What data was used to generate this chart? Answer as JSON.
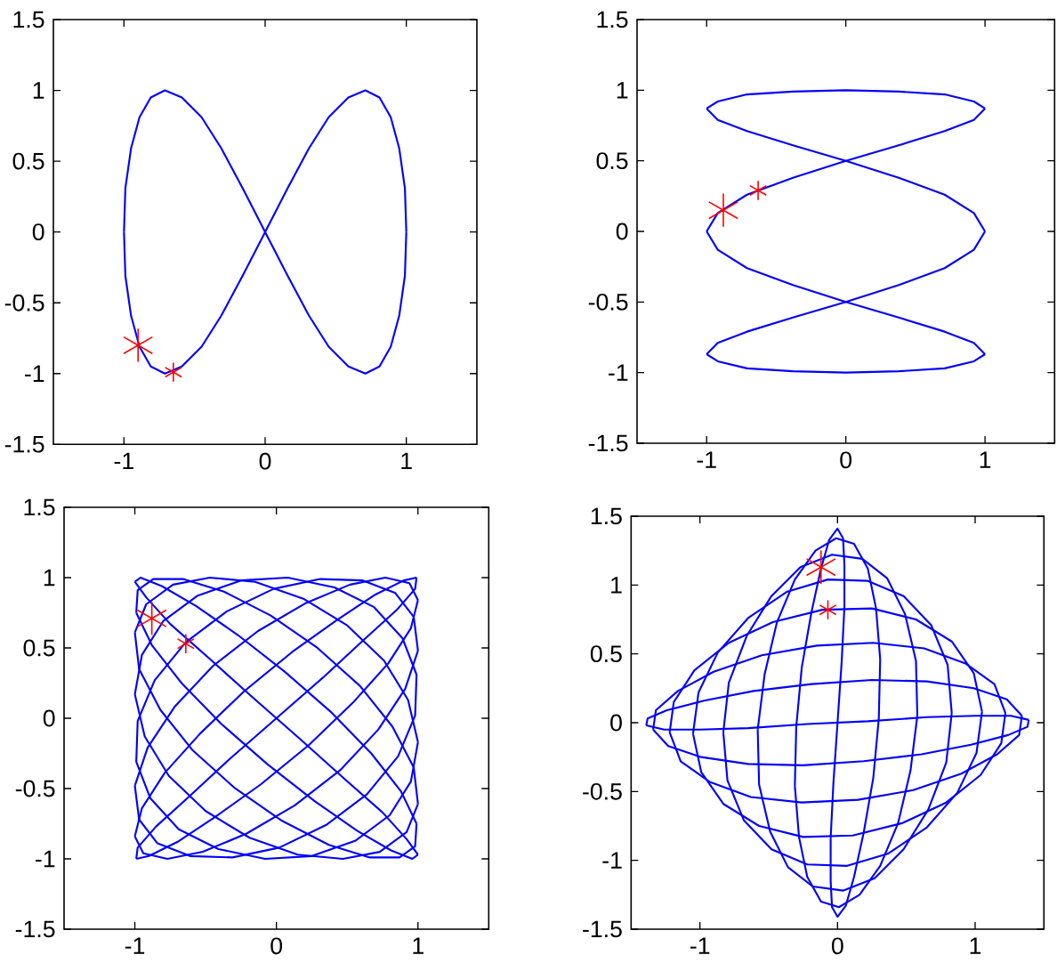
{
  "chart_data": [
    {
      "type": "line",
      "xlim": [
        -1.5,
        1.5
      ],
      "ylim": [
        -1.5,
        1.5
      ],
      "xticks": [
        -1,
        0,
        1
      ],
      "yticks": [
        -1.5,
        -1,
        -0.5,
        0,
        0.5,
        1,
        1.5
      ],
      "series": [
        {
          "type": "line",
          "color": "#0000ff",
          "x": [
            -1,
            -0.99,
            -0.95,
            -0.89,
            -0.81,
            -0.71,
            -0.59,
            -0.45,
            -0.31,
            -0.16,
            0,
            0.16,
            0.31,
            0.45,
            0.59,
            0.71,
            0.81,
            0.89,
            0.95,
            0.99,
            1,
            0.99,
            0.95,
            0.89,
            0.81,
            0.71,
            0.59,
            0.45,
            0.31,
            0.16,
            0,
            -0.16,
            -0.31,
            -0.45,
            -0.59,
            -0.71,
            -0.81,
            -0.89,
            -0.95,
            -0.99,
            -1
          ],
          "values": [
            0,
            -0.31,
            -0.59,
            -0.81,
            -0.95,
            -1,
            -0.95,
            -0.81,
            -0.59,
            -0.31,
            0,
            0.31,
            0.59,
            0.81,
            0.95,
            1,
            0.95,
            0.81,
            0.59,
            0.31,
            0,
            -0.31,
            -0.59,
            -0.81,
            -0.95,
            -1,
            -0.95,
            -0.81,
            -0.59,
            -0.31,
            0,
            0.31,
            0.59,
            0.81,
            0.95,
            1,
            0.95,
            0.81,
            0.59,
            0.31,
            0
          ]
        },
        {
          "type": "scatter",
          "color": "#ff0000",
          "marker": "cross",
          "x": [
            -0.9
          ],
          "values": [
            -0.8
          ]
        },
        {
          "type": "scatter",
          "color": "#ff0000",
          "marker": "cross",
          "x": [
            -0.65
          ],
          "values": [
            -0.99
          ]
        }
      ]
    },
    {
      "type": "line",
      "xlim": [
        -1.5,
        1.5
      ],
      "ylim": [
        -1.5,
        1.5
      ],
      "xticks": [
        -1,
        0,
        1
      ],
      "yticks": [
        -1.5,
        -1,
        -0.5,
        0,
        0.5,
        1,
        1.5
      ],
      "series": [
        {
          "type": "line",
          "color": "#0000ff",
          "x": [
            1,
            0.92,
            0.71,
            0.38,
            0,
            -0.38,
            -0.71,
            -0.92,
            -1,
            -0.92,
            -0.71,
            -0.38,
            0,
            0.38,
            0.71,
            0.92,
            1,
            0.92,
            0.71,
            0.38,
            0,
            -0.38,
            -0.71,
            -0.92,
            -1,
            -0.92,
            -0.71,
            -0.38,
            0,
            0.38,
            0.71,
            0.92,
            1,
            0.92,
            0.71,
            0.38,
            0,
            -0.38,
            -0.71,
            -0.92,
            -1,
            -0.92,
            -0.71,
            -0.38,
            0,
            0.38,
            0.71,
            0.92,
            1
          ],
          "values": [
            0,
            0.13,
            0.26,
            0.38,
            0.5,
            0.61,
            0.71,
            0.79,
            0.87,
            0.92,
            0.97,
            0.99,
            1,
            0.99,
            0.97,
            0.92,
            0.87,
            0.79,
            0.71,
            0.61,
            0.5,
            0.38,
            0.26,
            0.13,
            0,
            -0.13,
            -0.26,
            -0.38,
            -0.5,
            -0.61,
            -0.71,
            -0.79,
            -0.87,
            -0.92,
            -0.97,
            -0.99,
            -1,
            -0.99,
            -0.97,
            -0.92,
            -0.87,
            -0.79,
            -0.71,
            -0.61,
            -0.5,
            -0.38,
            -0.26,
            -0.13,
            0
          ]
        },
        {
          "type": "scatter",
          "color": "#ff0000",
          "marker": "cross",
          "x": [
            -0.88
          ],
          "values": [
            0.15
          ]
        },
        {
          "type": "scatter",
          "color": "#ff0000",
          "marker": "cross",
          "x": [
            -0.63
          ],
          "values": [
            0.29
          ]
        }
      ]
    },
    {
      "type": "line",
      "xlim": [
        -1.5,
        1.5
      ],
      "ylim": [
        -1.5,
        1.5
      ],
      "xticks": [
        -1,
        0,
        1
      ],
      "yticks": [
        -1.5,
        -1,
        -0.5,
        0,
        0.5,
        1,
        1.5
      ],
      "series": [
        {
          "type": "line",
          "color": "#0000ff",
          "x": [
            0,
            0.33,
            0.62,
            0.85,
            0.98,
            0.99,
            0.9,
            0.7,
            0.43,
            0.11,
            -0.23,
            -0.54,
            -0.79,
            -0.95,
            -1,
            -0.94,
            -0.77,
            -0.52,
            -0.21,
            0.13,
            0.45,
            0.72,
            0.91,
            1,
            0.97,
            0.84,
            0.61,
            0.31,
            -0.02,
            -0.35,
            -0.64,
            -0.86,
            -0.98,
            -0.99,
            -0.89,
            -0.69,
            -0.41,
            -0.08,
            0.25,
            0.56,
            0.8,
            0.95,
            1,
            0.93,
            0.76,
            0.5,
            0.19,
            -0.15,
            -0.47,
            -0.73,
            -0.92,
            -1,
            -0.97,
            -0.82,
            -0.59,
            -0.29,
            0.04,
            0.37,
            0.66,
            0.87,
            0.98,
            0.99,
            0.88,
            0.67,
            0.39,
            0.06,
            -0.27,
            -0.57,
            -0.81,
            -0.96,
            -1,
            -0.92,
            -0.75,
            -0.48,
            -0.17,
            0.17,
            0.48,
            0.75,
            0.92,
            1,
            0.96,
            0.81,
            0.57,
            0.27,
            -0.06,
            -0.39,
            -0.67,
            -0.88,
            -0.99,
            -0.98,
            -0.87,
            -0.66,
            -0.37,
            -0.04,
            0.29,
            0.59,
            0.82,
            0.97,
            1,
            0.92,
            0.73,
            0.47,
            0.15,
            -0.19,
            -0.5,
            -0.76,
            -0.93,
            -1,
            -0.95,
            -0.8,
            -0.56,
            -0.25,
            0.08,
            0.41,
            0.69,
            0.89,
            0.99,
            0.98,
            0.86,
            0.64,
            0.35,
            0.02,
            -0.31,
            -0.61,
            -0.84,
            -0.97,
            -1,
            -0.91,
            -0.72,
            -0.45,
            -0.13,
            0.21,
            0.52,
            0.77,
            0.94,
            1,
            0.95,
            0.79,
            0.54,
            0.23,
            -0.11,
            -0.43,
            -0.7,
            -0.9,
            -0.99,
            -0.98,
            -0.85,
            -0.62,
            -0.33,
            0
          ],
          "values": [
            0,
            0.29,
            0.56,
            0.77,
            0.92,
            1,
            0.98,
            0.88,
            0.7,
            0.47,
            0.19,
            -0.11,
            -0.39,
            -0.64,
            -0.84,
            -0.96,
            -1,
            -0.95,
            -0.82,
            -0.62,
            -0.37,
            -0.08,
            0.21,
            0.48,
            0.72,
            0.89,
            0.98,
            0.99,
            0.92,
            0.76,
            0.54,
            0.27,
            -0.02,
            -0.31,
            -0.57,
            -0.79,
            -0.93,
            -1,
            -0.98,
            -0.87,
            -0.69,
            -0.45,
            -0.17,
            0.13,
            0.41,
            0.66,
            0.85,
            0.97,
            1,
            0.95,
            0.81,
            0.61,
            0.35,
            0.06,
            -0.23,
            -0.5,
            -0.73,
            -0.9,
            -0.99,
            -0.99,
            -0.91,
            -0.75,
            -0.52,
            -0.25,
            0.04,
            0.33,
            0.59,
            0.8,
            0.94,
            1,
            0.97,
            0.86,
            0.67,
            0.43,
            0.15,
            -0.15,
            -0.43,
            -0.67,
            -0.86,
            -0.97,
            -1,
            -0.94,
            -0.8,
            -0.59,
            -0.33,
            -0.04,
            0.25,
            0.52,
            0.75,
            0.91,
            0.99,
            0.99,
            0.9,
            0.73,
            0.5,
            0.23,
            -0.06,
            -0.35,
            -0.61,
            -0.81,
            -0.95,
            -1,
            -0.97,
            -0.85,
            -0.66,
            -0.41,
            -0.13,
            0.17,
            0.45,
            0.69,
            0.87,
            0.98,
            1,
            0.93,
            0.79,
            0.57,
            0.31,
            0.02,
            -0.27,
            -0.54,
            -0.76,
            -0.92,
            -0.99,
            -0.98,
            -0.89,
            -0.72,
            -0.48,
            -0.21,
            0.08,
            0.37,
            0.62,
            0.82,
            0.95,
            1,
            0.96,
            0.84,
            0.64,
            0.39,
            0.11,
            -0.19,
            -0.47,
            -0.7,
            -0.88,
            -0.98,
            -1,
            -0.92,
            -0.77,
            -0.56,
            -0.29,
            0
          ]
        },
        {
          "type": "scatter",
          "color": "#ff0000",
          "marker": "cross",
          "x": [
            -0.88
          ],
          "values": [
            0.71
          ]
        },
        {
          "type": "scatter",
          "color": "#ff0000",
          "marker": "cross",
          "x": [
            -0.64
          ],
          "values": [
            0.53
          ]
        }
      ]
    },
    {
      "type": "line",
      "xlim": [
        -1.5,
        1.5
      ],
      "ylim": [
        -1.5,
        1.5
      ],
      "xticks": [
        -1,
        0,
        1
      ],
      "yticks": [
        -1.5,
        -1,
        -0.5,
        0,
        0.5,
        1,
        1.5
      ],
      "series": [
        {
          "type": "line",
          "color": "#0000ff",
          "x": [
            0,
            0.03,
            0.05,
            0.05,
            0.04,
            0,
            -0.06,
            -0.12,
            -0.19,
            -0.26,
            -0.3,
            -0.31,
            -0.28,
            -0.22,
            -0.12,
            0.01,
            0.16,
            0.31,
            0.44,
            0.53,
            0.58,
            0.57,
            0.49,
            0.36,
            0.18,
            -0.04,
            -0.27,
            -0.48,
            -0.66,
            -0.79,
            -0.83,
            -0.8,
            -0.68,
            -0.48,
            -0.22,
            0.07,
            0.37,
            0.65,
            0.87,
            1.01,
            1.05,
            0.99,
            0.83,
            0.57,
            0.25,
            -0.11,
            -0.47,
            -0.79,
            -1.04,
            -1.19,
            -1.22,
            -1.14,
            -0.93,
            -0.63,
            -0.26,
            0.15,
            0.55,
            0.9,
            1.16,
            1.32,
            1.34,
            1.23,
            0.99,
            0.65,
            0.25,
            -0.19,
            -0.61,
            -0.97,
            -1.24,
            -1.38,
            -1.39,
            -1.26,
            -1,
            -0.65,
            -0.22,
            0.22,
            0.65,
            1,
            1.26,
            1.39,
            1.38,
            1.24,
            0.97,
            0.61,
            0.19,
            -0.25,
            -0.65,
            -0.99,
            -1.23,
            -1.34,
            -1.32,
            -1.16,
            -0.9,
            -0.55,
            -0.15,
            0.26,
            0.63,
            0.93,
            1.14,
            1.22,
            1.19,
            1.04,
            0.79,
            0.47,
            0.11,
            -0.25,
            -0.57,
            -0.83,
            -0.99,
            -1.05,
            -1.01,
            -0.87,
            -0.65,
            -0.37,
            -0.07,
            0.22,
            0.48,
            0.68,
            0.8,
            0.83,
            0.79,
            0.66,
            0.48,
            0.27,
            0.04,
            -0.18,
            -0.36,
            -0.49,
            -0.57,
            -0.58,
            -0.53,
            -0.44,
            -0.31,
            -0.16,
            -0.01,
            0.12,
            0.22,
            0.28,
            0.31,
            0.3,
            0.26,
            0.19,
            0.12,
            0.06,
            0,
            -0.04,
            -0.05,
            -0.05,
            -0.03,
            0
          ],
          "values": [
            0,
            0.44,
            0.84,
            1.15,
            1.34,
            1.41,
            1.33,
            1.12,
            0.8,
            0.4,
            -0.03,
            -0.46,
            -0.83,
            -1.12,
            -1.3,
            -1.34,
            -1.25,
            -1.04,
            -0.73,
            -0.35,
            0.05,
            0.45,
            0.79,
            1.05,
            1.19,
            1.22,
            1.13,
            0.92,
            0.63,
            0.29,
            -0.07,
            -0.42,
            -0.71,
            -0.92,
            -1.03,
            -1.04,
            -0.95,
            -0.76,
            -0.51,
            -0.22,
            0.08,
            0.36,
            0.59,
            0.75,
            0.83,
            0.82,
            0.73,
            0.58,
            0.38,
            0.15,
            -0.07,
            -0.28,
            -0.43,
            -0.54,
            -0.58,
            -0.56,
            -0.49,
            -0.37,
            -0.23,
            -0.09,
            0.05,
            0.17,
            0.25,
            0.3,
            0.31,
            0.28,
            0.23,
            0.16,
            0.09,
            0.03,
            -0.02,
            -0.05,
            -0.05,
            -0.04,
            -0.01,
            0.01,
            0.04,
            0.05,
            0.05,
            0.02,
            -0.03,
            -0.09,
            -0.16,
            -0.23,
            -0.28,
            -0.31,
            -0.3,
            -0.25,
            -0.17,
            -0.05,
            0.09,
            0.23,
            0.37,
            0.49,
            0.56,
            0.58,
            0.54,
            0.43,
            0.28,
            0.07,
            -0.15,
            -0.38,
            -0.58,
            -0.73,
            -0.82,
            -0.83,
            -0.75,
            -0.59,
            -0.36,
            -0.08,
            0.22,
            0.51,
            0.76,
            0.95,
            1.04,
            1.03,
            0.92,
            0.71,
            0.42,
            0.07,
            -0.29,
            -0.63,
            -0.92,
            -1.13,
            -1.22,
            -1.19,
            -1.05,
            -0.79,
            -0.45,
            -0.05,
            0.35,
            0.73,
            1.04,
            1.25,
            1.34,
            1.3,
            1.12,
            0.83,
            0.46,
            0.03,
            -0.4,
            -0.8,
            -1.12,
            -1.33,
            -1.41,
            -1.34,
            -1.15,
            -0.84,
            -0.44,
            0
          ]
        },
        {
          "type": "scatter",
          "color": "#ff0000",
          "marker": "cross",
          "x": [
            -0.12
          ],
          "values": [
            1.13
          ]
        },
        {
          "type": "scatter",
          "color": "#ff0000",
          "marker": "cross",
          "x": [
            -0.07
          ],
          "values": [
            0.82
          ]
        }
      ]
    }
  ]
}
